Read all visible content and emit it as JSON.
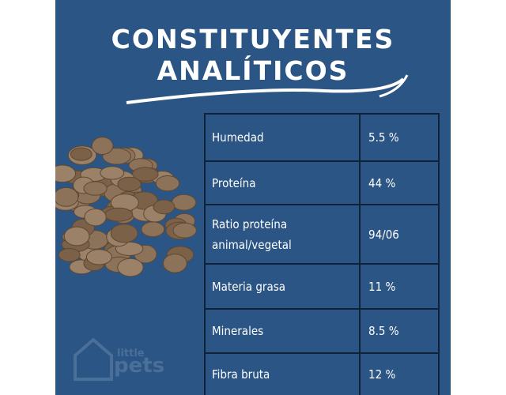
{
  "header": {
    "title": [
      "CONSTITUYENTES",
      "ANALÍTICOS"
    ]
  },
  "table": {
    "rows": [
      [
        "Humedad",
        "5.5 %"
      ],
      [
        "Proteína",
        "44 %"
      ],
      [
        "Ratio proteína animal/vegetal",
        "94/06"
      ],
      [
        "Materia grasa",
        "11 %"
      ],
      [
        "Minerales",
        "8.5 %"
      ],
      [
        "Fibra bruta",
        "12 %"
      ]
    ]
  },
  "logo": {
    "top": "little",
    "bottom": "pets"
  }
}
